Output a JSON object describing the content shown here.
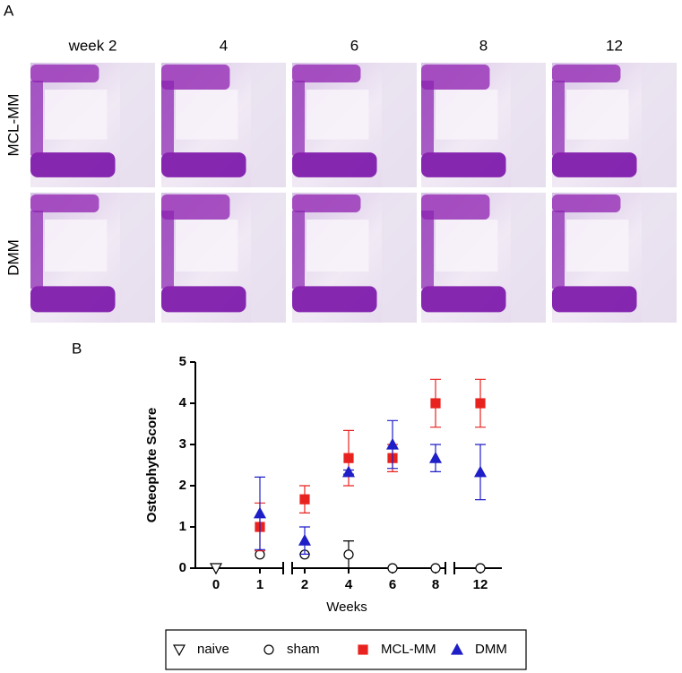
{
  "panel_a": {
    "label": "A",
    "columns": [
      "week 2",
      "4",
      "6",
      "8",
      "12"
    ],
    "rows": [
      "MCL-MM",
      "DMM"
    ]
  },
  "chart_data": {
    "type": "scatter",
    "panel_label": "B",
    "x_label": "Weeks",
    "y_label": "Osteophyte Score",
    "categories": [
      "0",
      "1",
      "2",
      "4",
      "6",
      "8",
      "12"
    ],
    "ylim": [
      0,
      5
    ],
    "yticks": [
      0,
      1,
      2,
      3,
      4,
      5
    ],
    "series": [
      {
        "name": "naive",
        "color": "#000000",
        "marker": "triangle-down",
        "filled": false,
        "values": [
          0,
          null,
          null,
          null,
          null,
          null,
          null
        ],
        "errors": [
          null,
          null,
          null,
          null,
          null,
          null,
          null
        ]
      },
      {
        "name": "sham",
        "color": "#000000",
        "marker": "circle",
        "filled": false,
        "values": [
          null,
          0.33,
          0.33,
          0.33,
          0,
          0,
          0
        ],
        "errors": [
          null,
          null,
          null,
          0.33,
          null,
          null,
          null
        ]
      },
      {
        "name": "MCL-MM",
        "color": "#e8231f",
        "marker": "square",
        "filled": true,
        "values": [
          null,
          1.0,
          1.67,
          2.67,
          2.67,
          4.0,
          4.0
        ],
        "errors": [
          null,
          0.58,
          0.33,
          0.67,
          0.33,
          0.58,
          0.58
        ]
      },
      {
        "name": "DMM",
        "color": "#1f1fc8",
        "marker": "triangle-up",
        "filled": true,
        "values": [
          null,
          1.33,
          0.67,
          2.33,
          3.0,
          2.67,
          2.33
        ],
        "errors": [
          null,
          0.88,
          0.33,
          0.05,
          0.58,
          0.33,
          0.67
        ]
      }
    ]
  }
}
